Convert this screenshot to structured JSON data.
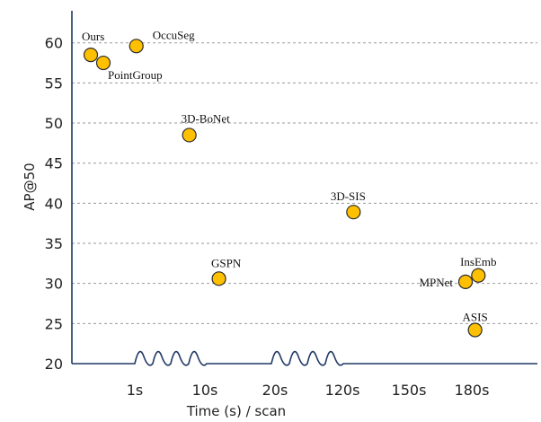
{
  "chart_data": {
    "type": "scatter",
    "title": "",
    "xlabel": "Time (s) / scan",
    "ylabel": "AP@50",
    "x_categories": [
      "1s",
      "10s",
      "20s",
      "120s",
      "150s",
      "180s"
    ],
    "y_ticks": [
      20,
      25,
      30,
      35,
      40,
      45,
      50,
      55,
      60
    ],
    "ylim": [
      20,
      64
    ],
    "grid": "horizontal-dashed",
    "x_axis_note": "discontinuous axis shown with wavy breaks",
    "points": [
      {
        "name": "Ours",
        "time": "0.3s",
        "x": 0.3,
        "y": 58.5
      },
      {
        "name": "PointGroup",
        "time": "0.5s",
        "x": 0.5,
        "y": 57.5
      },
      {
        "name": "OccuSeg",
        "time": "1.2s",
        "x": 1.2,
        "y": 59.6
      },
      {
        "name": "3D-BoNet",
        "time": "8s",
        "x": 8,
        "y": 48.5
      },
      {
        "name": "GSPN",
        "time": "12s",
        "x": 12,
        "y": 30.6
      },
      {
        "name": "3D-SIS",
        "time": "125s",
        "x": 125,
        "y": 38.9
      },
      {
        "name": "MPNet",
        "time": "177s",
        "x": 177,
        "y": 30.2
      },
      {
        "name": "InsEmb",
        "time": "182s",
        "x": 182,
        "y": 31.0
      },
      {
        "name": "ASIS",
        "time": "181s",
        "x": 181,
        "y": 24.2
      }
    ],
    "colors": {
      "point_fill": "#FFC000",
      "point_stroke": "#2b2b2b",
      "axis": "#1f3864",
      "grid": "#9a9a9a"
    }
  }
}
